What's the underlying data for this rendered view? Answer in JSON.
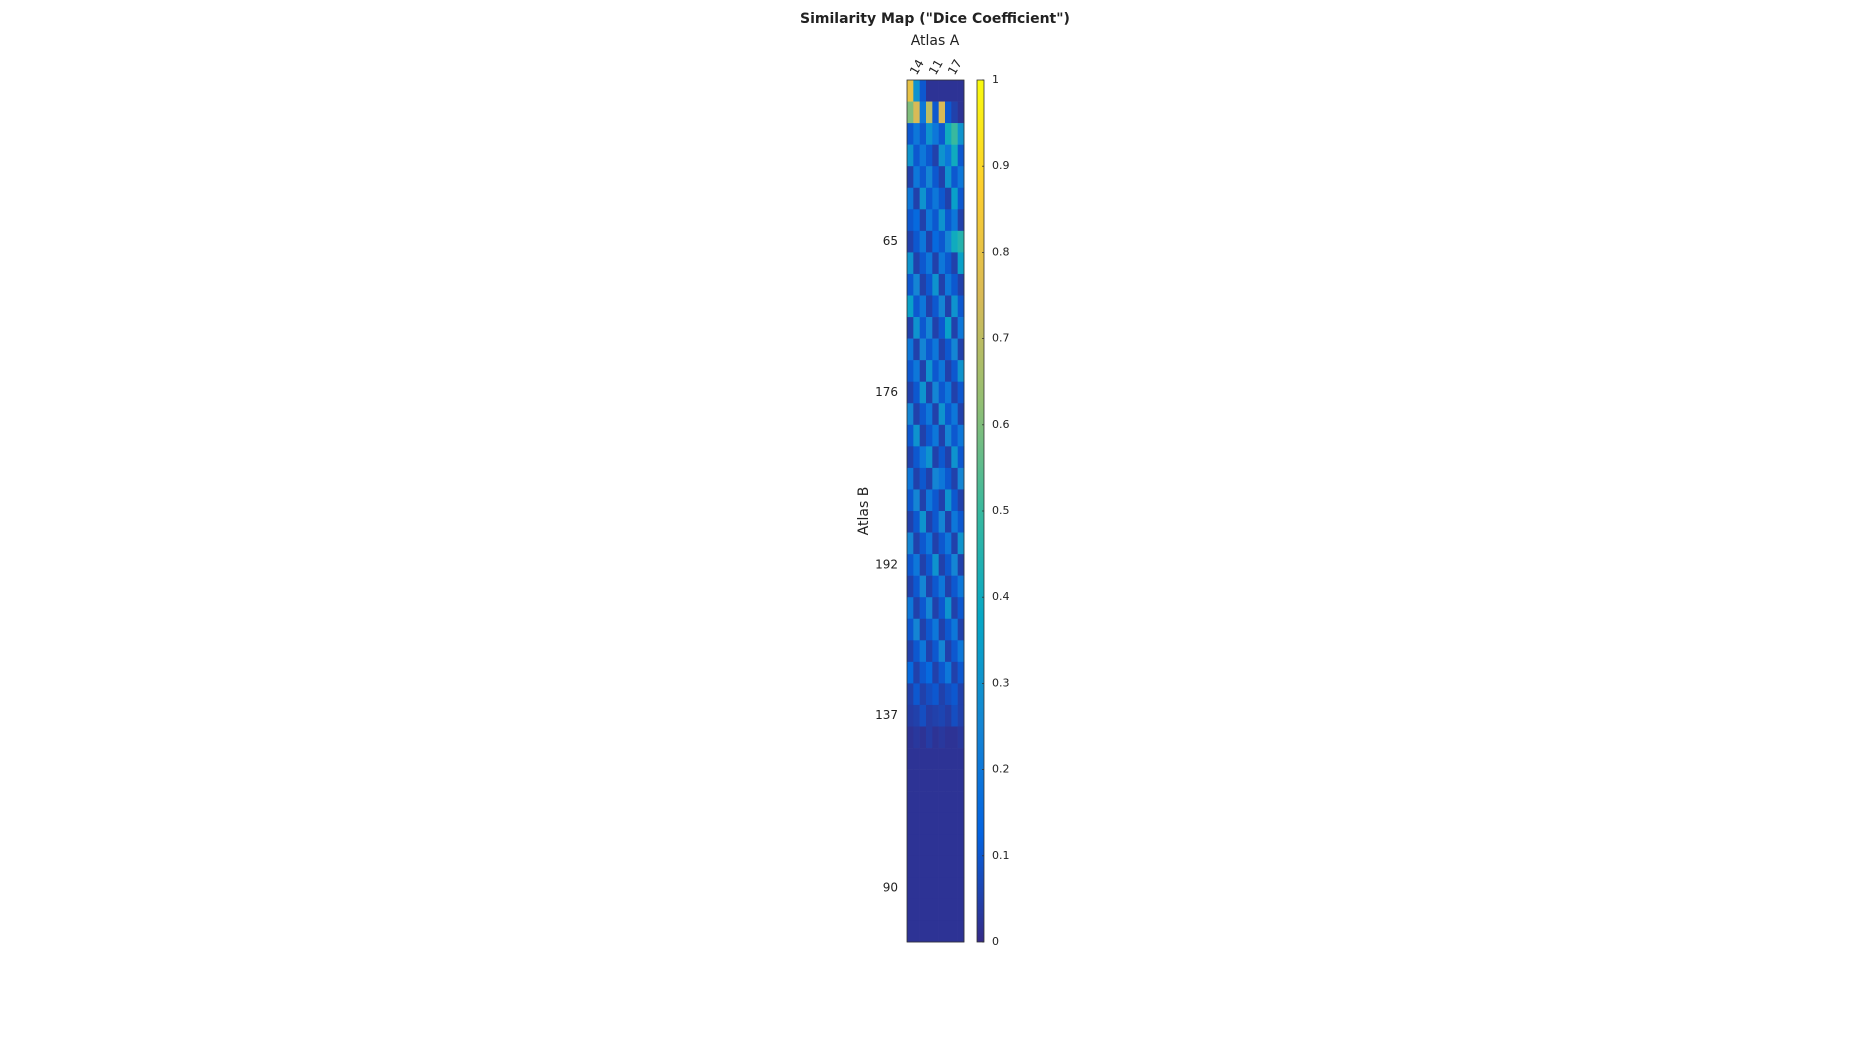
{
  "chart_data": {
    "type": "heatmap",
    "title": "Similarity Map (\"Dice Coefficient\")",
    "x_label": "Atlas A",
    "y_label": "Atlas B",
    "x_categories": [
      null,
      "14",
      null,
      null,
      "11",
      null,
      null,
      "17",
      null
    ],
    "y_categories": [
      null,
      null,
      null,
      null,
      null,
      null,
      null,
      "65",
      null,
      null,
      null,
      null,
      null,
      null,
      "176",
      null,
      null,
      null,
      null,
      null,
      null,
      null,
      "192",
      null,
      null,
      null,
      null,
      null,
      null,
      "137",
      null,
      null,
      null,
      null,
      null,
      null,
      null,
      "90",
      null,
      null
    ],
    "z": [
      [
        0.8,
        0.3,
        0.1,
        0.02,
        0.02,
        0.02,
        0.02,
        0.02,
        0.02
      ],
      [
        0.6,
        0.75,
        0.2,
        0.7,
        0.1,
        0.75,
        0.1,
        0.05,
        0.02
      ],
      [
        0.1,
        0.2,
        0.1,
        0.3,
        0.2,
        0.1,
        0.4,
        0.5,
        0.3
      ],
      [
        0.3,
        0.1,
        0.2,
        0.1,
        0.05,
        0.3,
        0.2,
        0.4,
        0.1
      ],
      [
        0.05,
        0.2,
        0.1,
        0.25,
        0.1,
        0.05,
        0.3,
        0.1,
        0.2
      ],
      [
        0.2,
        0.05,
        0.3,
        0.1,
        0.2,
        0.1,
        0.05,
        0.35,
        0.1
      ],
      [
        0.1,
        0.15,
        0.05,
        0.2,
        0.1,
        0.3,
        0.1,
        0.2,
        0.05
      ],
      [
        0.05,
        0.1,
        0.2,
        0.05,
        0.15,
        0.1,
        0.25,
        0.4,
        0.45
      ],
      [
        0.3,
        0.05,
        0.1,
        0.2,
        0.05,
        0.2,
        0.1,
        0.05,
        0.35
      ],
      [
        0.1,
        0.25,
        0.05,
        0.1,
        0.3,
        0.05,
        0.2,
        0.1,
        0.05
      ],
      [
        0.35,
        0.1,
        0.2,
        0.05,
        0.1,
        0.25,
        0.05,
        0.3,
        0.1
      ],
      [
        0.05,
        0.3,
        0.1,
        0.25,
        0.05,
        0.1,
        0.35,
        0.05,
        0.2
      ],
      [
        0.2,
        0.05,
        0.25,
        0.1,
        0.2,
        0.05,
        0.1,
        0.25,
        0.05
      ],
      [
        0.1,
        0.2,
        0.05,
        0.3,
        0.1,
        0.2,
        0.05,
        0.1,
        0.3
      ],
      [
        0.05,
        0.1,
        0.3,
        0.05,
        0.25,
        0.1,
        0.2,
        0.05,
        0.1
      ],
      [
        0.25,
        0.05,
        0.1,
        0.2,
        0.05,
        0.3,
        0.1,
        0.2,
        0.05
      ],
      [
        0.1,
        0.3,
        0.05,
        0.1,
        0.2,
        0.05,
        0.25,
        0.1,
        0.2
      ],
      [
        0.05,
        0.1,
        0.2,
        0.3,
        0.05,
        0.1,
        0.05,
        0.3,
        0.1
      ],
      [
        0.2,
        0.05,
        0.1,
        0.05,
        0.25,
        0.2,
        0.1,
        0.05,
        0.25
      ],
      [
        0.1,
        0.25,
        0.05,
        0.2,
        0.1,
        0.05,
        0.3,
        0.1,
        0.05
      ],
      [
        0.05,
        0.1,
        0.3,
        0.05,
        0.1,
        0.25,
        0.05,
        0.2,
        0.1
      ],
      [
        0.25,
        0.05,
        0.1,
        0.2,
        0.05,
        0.1,
        0.2,
        0.05,
        0.3
      ],
      [
        0.1,
        0.2,
        0.05,
        0.1,
        0.3,
        0.05,
        0.1,
        0.25,
        0.05
      ],
      [
        0.05,
        0.1,
        0.25,
        0.05,
        0.1,
        0.2,
        0.05,
        0.1,
        0.2
      ],
      [
        0.2,
        0.05,
        0.1,
        0.25,
        0.05,
        0.1,
        0.3,
        0.05,
        0.1
      ],
      [
        0.1,
        0.25,
        0.05,
        0.1,
        0.2,
        0.05,
        0.1,
        0.2,
        0.05
      ],
      [
        0.05,
        0.1,
        0.2,
        0.05,
        0.1,
        0.25,
        0.05,
        0.1,
        0.2
      ],
      [
        0.15,
        0.05,
        0.1,
        0.15,
        0.05,
        0.1,
        0.2,
        0.05,
        0.1
      ],
      [
        0.05,
        0.1,
        0.05,
        0.08,
        0.1,
        0.05,
        0.08,
        0.1,
        0.05
      ],
      [
        0.04,
        0.05,
        0.08,
        0.04,
        0.05,
        0.06,
        0.04,
        0.08,
        0.05
      ],
      [
        0.02,
        0.03,
        0.02,
        0.04,
        0.02,
        0.03,
        0.02,
        0.02,
        0.03
      ],
      [
        0.02,
        0.02,
        0.02,
        0.02,
        0.02,
        0.02,
        0.02,
        0.02,
        0.02
      ],
      [
        0.02,
        0.02,
        0.02,
        0.02,
        0.02,
        0.02,
        0.02,
        0.02,
        0.02
      ],
      [
        0.02,
        0.02,
        0.02,
        0.02,
        0.02,
        0.02,
        0.02,
        0.02,
        0.02
      ],
      [
        0.02,
        0.02,
        0.02,
        0.02,
        0.02,
        0.02,
        0.02,
        0.02,
        0.02
      ],
      [
        0.02,
        0.02,
        0.02,
        0.02,
        0.02,
        0.02,
        0.02,
        0.02,
        0.02
      ],
      [
        0.02,
        0.02,
        0.02,
        0.02,
        0.02,
        0.02,
        0.02,
        0.02,
        0.02
      ],
      [
        0.02,
        0.02,
        0.02,
        0.02,
        0.02,
        0.02,
        0.02,
        0.02,
        0.02
      ],
      [
        0.02,
        0.02,
        0.02,
        0.02,
        0.02,
        0.02,
        0.02,
        0.02,
        0.02
      ],
      [
        0.02,
        0.02,
        0.02,
        0.02,
        0.02,
        0.02,
        0.02,
        0.02,
        0.02
      ]
    ],
    "clim": [
      0,
      1
    ],
    "cticks": [
      0,
      0.1,
      0.2,
      0.3,
      0.4,
      0.5,
      0.6,
      0.7,
      0.8,
      0.9,
      1
    ],
    "colormap": [
      "#352a87",
      "#0363e1",
      "#1485d4",
      "#06a7c6",
      "#38b99e",
      "#92bf73",
      "#d9ba56",
      "#fcce2e",
      "#f9fb0e"
    ]
  }
}
